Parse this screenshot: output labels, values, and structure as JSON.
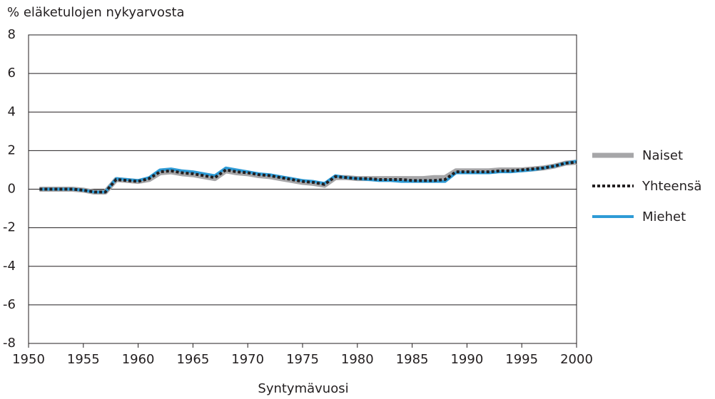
{
  "chart_data": {
    "type": "line",
    "y_label": "% eläketulojen nykyarvosta",
    "x_label": "Syntymävuosi",
    "x": [
      1951,
      1952,
      1953,
      1954,
      1955,
      1956,
      1957,
      1958,
      1959,
      1960,
      1961,
      1962,
      1963,
      1964,
      1965,
      1966,
      1967,
      1968,
      1969,
      1970,
      1971,
      1972,
      1973,
      1974,
      1975,
      1976,
      1977,
      1978,
      1979,
      1980,
      1981,
      1982,
      1983,
      1984,
      1985,
      1986,
      1987,
      1988,
      1989,
      1990,
      1991,
      1992,
      1993,
      1994,
      1995,
      1996,
      1997,
      1998,
      1999,
      2000
    ],
    "series": [
      {
        "name": "Naiset",
        "color": "#a6a6a8",
        "width": 7,
        "dashed": false,
        "values": [
          0,
          0,
          0,
          0,
          -0.05,
          -0.15,
          -0.15,
          0.5,
          0.45,
          0.4,
          0.5,
          0.85,
          0.9,
          0.8,
          0.75,
          0.65,
          0.55,
          0.95,
          0.85,
          0.8,
          0.7,
          0.65,
          0.55,
          0.45,
          0.35,
          0.3,
          0.2,
          0.6,
          0.6,
          0.55,
          0.55,
          0.55,
          0.55,
          0.55,
          0.55,
          0.55,
          0.6,
          0.6,
          0.95,
          0.95,
          0.95,
          0.95,
          1.0,
          1.0,
          1.0,
          1.05,
          1.1,
          1.2,
          1.35,
          1.4
        ]
      },
      {
        "name": "Miehet",
        "color": "#2e9bd6",
        "width": 4,
        "dashed": false,
        "values": [
          0,
          0,
          0,
          0,
          -0.05,
          -0.15,
          -0.15,
          0.55,
          0.5,
          0.45,
          0.6,
          1.0,
          1.05,
          0.95,
          0.9,
          0.8,
          0.7,
          1.1,
          1.0,
          0.9,
          0.8,
          0.75,
          0.65,
          0.55,
          0.45,
          0.4,
          0.3,
          0.7,
          0.6,
          0.55,
          0.5,
          0.45,
          0.45,
          0.4,
          0.4,
          0.4,
          0.4,
          0.4,
          0.85,
          0.85,
          0.85,
          0.85,
          0.9,
          0.9,
          0.95,
          1.0,
          1.1,
          1.2,
          1.35,
          1.45
        ]
      },
      {
        "name": "Yhteensä",
        "color": "#231f20",
        "width": 4,
        "dashed": true,
        "values": [
          0,
          0,
          0,
          0,
          -0.05,
          -0.15,
          -0.15,
          0.5,
          0.45,
          0.4,
          0.55,
          0.9,
          0.95,
          0.85,
          0.8,
          0.7,
          0.6,
          1.0,
          0.9,
          0.85,
          0.75,
          0.7,
          0.6,
          0.5,
          0.4,
          0.35,
          0.25,
          0.65,
          0.6,
          0.55,
          0.55,
          0.5,
          0.5,
          0.5,
          0.45,
          0.45,
          0.45,
          0.5,
          0.9,
          0.9,
          0.9,
          0.9,
          0.95,
          0.95,
          1.0,
          1.05,
          1.1,
          1.2,
          1.35,
          1.4
        ]
      }
    ],
    "legend_order": [
      "Naiset",
      "Yhteensä",
      "Miehet"
    ],
    "xlim": [
      1950,
      2000
    ],
    "xticks": [
      1950,
      1955,
      1960,
      1965,
      1970,
      1975,
      1980,
      1985,
      1990,
      1995,
      2000
    ],
    "ylim": [
      -8,
      8
    ],
    "yticks": [
      -8,
      -6,
      -4,
      -2,
      0,
      2,
      4,
      6,
      8
    ],
    "grid": true,
    "legend": "right"
  }
}
